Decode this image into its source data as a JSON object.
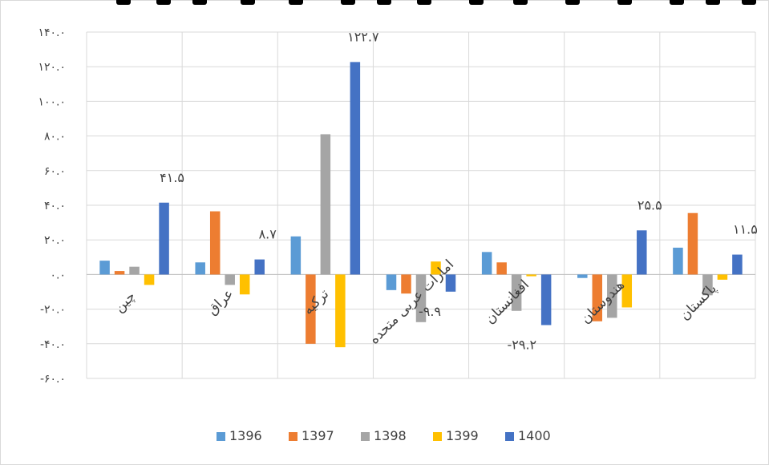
{
  "chart_data": {
    "type": "bar",
    "categories": [
      "چین",
      "عراق",
      "ترکیه",
      "امارات عربی متحده",
      "افغانستان",
      "هندوستان",
      "پاکستان"
    ],
    "series": [
      {
        "name": "1396",
        "color": "#5B9BD5",
        "values": [
          8,
          7,
          22,
          -9,
          13,
          -2,
          15.5
        ]
      },
      {
        "name": "1397",
        "color": "#ED7D31",
        "values": [
          2,
          36.5,
          -40,
          -11,
          7,
          -27,
          35.5
        ]
      },
      {
        "name": "1398",
        "color": "#A5A5A5",
        "values": [
          4.5,
          -6,
          81,
          -27.5,
          -21,
          -25,
          -12
        ]
      },
      {
        "name": "1399",
        "color": "#FFC000",
        "values": [
          -6,
          -11.5,
          -42,
          7.5,
          -1,
          -19,
          -3
        ]
      },
      {
        "name": "1400",
        "color": "#4472C4",
        "values": [
          41.5,
          8.7,
          122.7,
          -9.9,
          -29.2,
          25.5,
          11.5
        ]
      }
    ],
    "data_labels": [
      "۴۱.۵",
      "۸.۷",
      "۱۲۲.۷",
      "-۹.۹",
      "-۲۹.۲",
      "۲۵.۵",
      "۱۱.۵"
    ],
    "y_ticks": [
      "-۶۰.۰",
      "-۴۰.۰",
      "-۲۰.۰",
      "۰.۰",
      "۲۰.۰",
      "۴۰.۰",
      "۶۰.۰",
      "۸۰.۰",
      "۱۰۰.۰",
      "۱۲۰.۰",
      "۱۴۰.۰"
    ],
    "ylim": [
      -60,
      140
    ],
    "grid": true,
    "legend_position": "bottom",
    "title": "",
    "xlabel": "",
    "ylabel": ""
  }
}
